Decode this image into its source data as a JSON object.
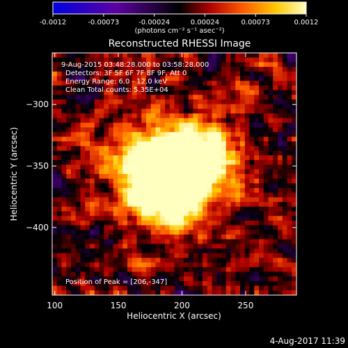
{
  "chart_data": {
    "type": "heatmap",
    "title": "Reconstructed RHESSI Image",
    "xlabel": "Heliocentric X (arcsec)",
    "ylabel": "Heliocentric Y (arcsec)",
    "xlim": [
      98,
      290
    ],
    "ylim": [
      -455,
      -258
    ],
    "x_ticks": [
      100,
      150,
      200,
      250
    ],
    "y_ticks": [
      -300,
      -350,
      -400
    ],
    "colorbar": {
      "range": [
        -0.0012,
        0.0012
      ],
      "tick_labels": [
        "-0.0012",
        "-0.00073",
        "-0.00024",
        "0.00024",
        "0.00073",
        "0.0012"
      ],
      "unit_label": "(photons cm⁻² s⁻¹ asec⁻²)",
      "stops": [
        "#0000e0",
        "#5a00a0",
        "#000000",
        "#b00000",
        "#ff5a00",
        "#ffc800",
        "#ffffc0"
      ]
    },
    "annotations": {
      "time_range": "9-Aug-2015 03:48:28.000 to 03:58:28.000",
      "detectors": "Detectors: 3F 5F 6F 7F 8F 9F, Att 0",
      "energy": "Energy Range: 6.0 - 12.0 keV",
      "clean": "Clean    Total counts: 5.35E+04",
      "peak": "Position of Peak = [206,-347]"
    },
    "peak": [
      206,
      -347
    ],
    "source_centers": [
      [
        175,
        -345
      ],
      [
        200,
        -355
      ],
      [
        215,
        -340
      ],
      [
        185,
        -375
      ]
    ]
  },
  "footer": {
    "timestamp": "4-Aug-2017 11:39"
  }
}
